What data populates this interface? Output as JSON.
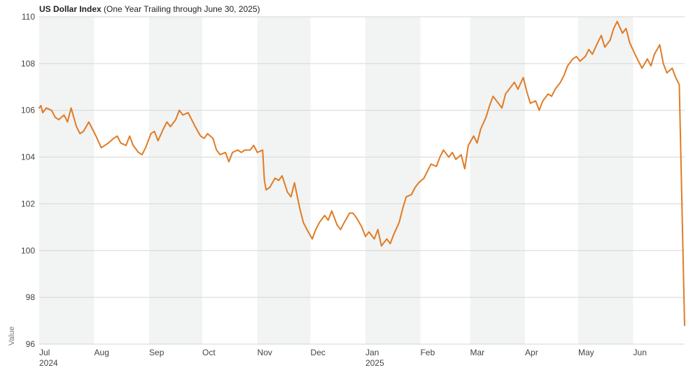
{
  "chart_data": {
    "type": "line",
    "title": "US Dollar Index",
    "subtitle": "(One Year Trailing through June 30, 2025)",
    "xlabel": "",
    "ylabel": "Value",
    "ylim": [
      96,
      110
    ],
    "yticks": [
      96,
      98,
      100,
      102,
      104,
      106,
      108,
      110
    ],
    "grid": "horizontal",
    "x_axis": {
      "start": "2024-07-01",
      "end": "2025-06-30",
      "month_labels": [
        {
          "label": "Jul",
          "date": "2024-07-01",
          "year": "2024"
        },
        {
          "label": "Aug",
          "date": "2024-08-01"
        },
        {
          "label": "Sep",
          "date": "2024-09-01"
        },
        {
          "label": "Oct",
          "date": "2024-10-01"
        },
        {
          "label": "Nov",
          "date": "2024-11-01"
        },
        {
          "label": "Dec",
          "date": "2024-12-01"
        },
        {
          "label": "Jan",
          "date": "2025-01-01",
          "year": "2025"
        },
        {
          "label": "Feb",
          "date": "2025-02-01"
        },
        {
          "label": "Mar",
          "date": "2025-03-01"
        },
        {
          "label": "Apr",
          "date": "2025-04-01"
        },
        {
          "label": "May",
          "date": "2025-05-01"
        },
        {
          "label": "Jun",
          "date": "2025-06-01"
        }
      ],
      "shaded_months": [
        "2024-07",
        "2024-09",
        "2024-11",
        "2025-01",
        "2025-03",
        "2025-05"
      ]
    },
    "colors": {
      "line": "#e07b24",
      "band": "#f2f3f3",
      "grid": "#d6d6d6"
    },
    "series": [
      {
        "name": "",
        "points": [
          [
            "2024-07-01",
            106.1
          ],
          [
            "2024-07-02",
            106.2
          ],
          [
            "2024-07-03",
            105.9
          ],
          [
            "2024-07-05",
            106.1
          ],
          [
            "2024-07-08",
            106.0
          ],
          [
            "2024-07-10",
            105.7
          ],
          [
            "2024-07-12",
            105.6
          ],
          [
            "2024-07-15",
            105.8
          ],
          [
            "2024-07-17",
            105.5
          ],
          [
            "2024-07-19",
            106.1
          ],
          [
            "2024-07-22",
            105.3
          ],
          [
            "2024-07-24",
            105.0
          ],
          [
            "2024-07-26",
            105.1
          ],
          [
            "2024-07-29",
            105.5
          ],
          [
            "2024-07-31",
            105.2
          ],
          [
            "2024-08-02",
            104.9
          ],
          [
            "2024-08-05",
            104.4
          ],
          [
            "2024-08-07",
            104.5
          ],
          [
            "2024-08-09",
            104.6
          ],
          [
            "2024-08-12",
            104.8
          ],
          [
            "2024-08-14",
            104.9
          ],
          [
            "2024-08-16",
            104.6
          ],
          [
            "2024-08-19",
            104.5
          ],
          [
            "2024-08-21",
            104.9
          ],
          [
            "2024-08-23",
            104.5
          ],
          [
            "2024-08-26",
            104.2
          ],
          [
            "2024-08-28",
            104.1
          ],
          [
            "2024-08-30",
            104.4
          ],
          [
            "2024-09-02",
            105.0
          ],
          [
            "2024-09-04",
            105.1
          ],
          [
            "2024-09-06",
            104.7
          ],
          [
            "2024-09-09",
            105.2
          ],
          [
            "2024-09-11",
            105.5
          ],
          [
            "2024-09-13",
            105.3
          ],
          [
            "2024-09-16",
            105.6
          ],
          [
            "2024-09-18",
            106.0
          ],
          [
            "2024-09-20",
            105.8
          ],
          [
            "2024-09-23",
            105.9
          ],
          [
            "2024-09-25",
            105.6
          ],
          [
            "2024-09-27",
            105.3
          ],
          [
            "2024-09-30",
            104.9
          ],
          [
            "2024-10-02",
            104.8
          ],
          [
            "2024-10-04",
            105.0
          ],
          [
            "2024-10-07",
            104.8
          ],
          [
            "2024-10-09",
            104.3
          ],
          [
            "2024-10-11",
            104.1
          ],
          [
            "2024-10-14",
            104.2
          ],
          [
            "2024-10-16",
            103.8
          ],
          [
            "2024-10-18",
            104.2
          ],
          [
            "2024-10-21",
            104.3
          ],
          [
            "2024-10-23",
            104.2
          ],
          [
            "2024-10-25",
            104.3
          ],
          [
            "2024-10-28",
            104.3
          ],
          [
            "2024-10-30",
            104.5
          ],
          [
            "2024-11-01",
            104.2
          ],
          [
            "2024-11-04",
            104.3
          ],
          [
            "2024-11-05",
            103.0
          ],
          [
            "2024-11-06",
            102.6
          ],
          [
            "2024-11-08",
            102.7
          ],
          [
            "2024-11-11",
            103.1
          ],
          [
            "2024-11-13",
            103.0
          ],
          [
            "2024-11-15",
            103.2
          ],
          [
            "2024-11-18",
            102.5
          ],
          [
            "2024-11-20",
            102.3
          ],
          [
            "2024-11-22",
            102.9
          ],
          [
            "2024-11-25",
            101.8
          ],
          [
            "2024-11-27",
            101.2
          ],
          [
            "2024-11-29",
            100.9
          ],
          [
            "2024-12-02",
            100.5
          ],
          [
            "2024-12-04",
            100.9
          ],
          [
            "2024-12-06",
            101.2
          ],
          [
            "2024-12-09",
            101.5
          ],
          [
            "2024-12-11",
            101.3
          ],
          [
            "2024-12-13",
            101.7
          ],
          [
            "2024-12-16",
            101.1
          ],
          [
            "2024-12-18",
            100.9
          ],
          [
            "2024-12-20",
            101.2
          ],
          [
            "2024-12-23",
            101.6
          ],
          [
            "2024-12-25",
            101.6
          ],
          [
            "2024-12-27",
            101.4
          ],
          [
            "2024-12-30",
            101.0
          ],
          [
            "2025-01-01",
            100.6
          ],
          [
            "2025-01-03",
            100.8
          ],
          [
            "2025-01-06",
            100.5
          ],
          [
            "2025-01-08",
            100.9
          ],
          [
            "2025-01-10",
            100.2
          ],
          [
            "2025-01-13",
            100.5
          ],
          [
            "2025-01-15",
            100.3
          ],
          [
            "2025-01-17",
            100.7
          ],
          [
            "2025-01-20",
            101.2
          ],
          [
            "2025-01-22",
            101.8
          ],
          [
            "2025-01-24",
            102.3
          ],
          [
            "2025-01-27",
            102.4
          ],
          [
            "2025-01-29",
            102.7
          ],
          [
            "2025-01-31",
            102.9
          ],
          [
            "2025-02-03",
            103.1
          ],
          [
            "2025-02-05",
            103.4
          ],
          [
            "2025-02-07",
            103.7
          ],
          [
            "2025-02-10",
            103.6
          ],
          [
            "2025-02-12",
            104.0
          ],
          [
            "2025-02-14",
            104.3
          ],
          [
            "2025-02-17",
            104.0
          ],
          [
            "2025-02-19",
            104.2
          ],
          [
            "2025-02-21",
            103.9
          ],
          [
            "2025-02-24",
            104.1
          ],
          [
            "2025-02-26",
            103.5
          ],
          [
            "2025-02-28",
            104.5
          ],
          [
            "2025-03-03",
            104.9
          ],
          [
            "2025-03-05",
            104.6
          ],
          [
            "2025-03-07",
            105.2
          ],
          [
            "2025-03-10",
            105.7
          ],
          [
            "2025-03-12",
            106.2
          ],
          [
            "2025-03-14",
            106.6
          ],
          [
            "2025-03-17",
            106.3
          ],
          [
            "2025-03-19",
            106.1
          ],
          [
            "2025-03-21",
            106.7
          ],
          [
            "2025-03-24",
            107.0
          ],
          [
            "2025-03-26",
            107.2
          ],
          [
            "2025-03-28",
            106.9
          ],
          [
            "2025-03-31",
            107.4
          ],
          [
            "2025-04-02",
            106.8
          ],
          [
            "2025-04-04",
            106.3
          ],
          [
            "2025-04-07",
            106.4
          ],
          [
            "2025-04-09",
            106.0
          ],
          [
            "2025-04-11",
            106.4
          ],
          [
            "2025-04-14",
            106.7
          ],
          [
            "2025-04-16",
            106.6
          ],
          [
            "2025-04-18",
            106.9
          ],
          [
            "2025-04-21",
            107.2
          ],
          [
            "2025-04-23",
            107.5
          ],
          [
            "2025-04-25",
            107.9
          ],
          [
            "2025-04-28",
            108.2
          ],
          [
            "2025-04-30",
            108.3
          ],
          [
            "2025-05-02",
            108.1
          ],
          [
            "2025-05-05",
            108.3
          ],
          [
            "2025-05-07",
            108.6
          ],
          [
            "2025-05-09",
            108.4
          ],
          [
            "2025-05-12",
            108.9
          ],
          [
            "2025-05-14",
            109.2
          ],
          [
            "2025-05-16",
            108.7
          ],
          [
            "2025-05-19",
            109.0
          ],
          [
            "2025-05-21",
            109.5
          ],
          [
            "2025-05-23",
            109.8
          ],
          [
            "2025-05-26",
            109.3
          ],
          [
            "2025-05-28",
            109.5
          ],
          [
            "2025-05-30",
            108.9
          ],
          [
            "2025-06-02",
            108.4
          ],
          [
            "2025-06-04",
            108.1
          ],
          [
            "2025-06-06",
            107.8
          ],
          [
            "2025-06-09",
            108.2
          ],
          [
            "2025-06-11",
            107.9
          ],
          [
            "2025-06-13",
            108.4
          ],
          [
            "2025-06-16",
            108.8
          ],
          [
            "2025-06-18",
            108.0
          ],
          [
            "2025-06-20",
            107.6
          ],
          [
            "2025-06-23",
            107.8
          ],
          [
            "2025-06-25",
            107.4
          ],
          [
            "2025-06-27",
            107.1
          ],
          [
            "2025-06-30",
            96.8
          ]
        ]
      }
    ]
  }
}
